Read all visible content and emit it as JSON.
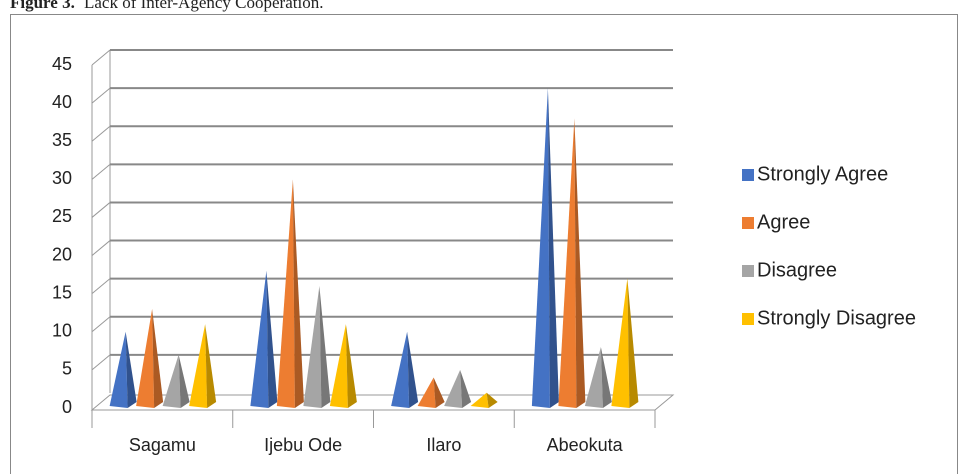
{
  "figure_label": "Figure 3.",
  "caption": "Lack of Inter-Agency Cooperation.",
  "chart_data": {
    "type": "pyramid3d",
    "categories": [
      "Sagamu",
      "Ijebu Ode",
      "Ilaro",
      "Abeokuta"
    ],
    "series": [
      {
        "name": "Strongly Agree",
        "color": "#4472c4",
        "values": [
          10,
          18,
          10,
          42
        ]
      },
      {
        "name": "Agree",
        "color": "#ed7d31",
        "values": [
          13,
          30,
          4,
          38
        ]
      },
      {
        "name": "Disagree",
        "color": "#a5a5a5",
        "values": [
          7,
          16,
          5,
          8
        ]
      },
      {
        "name": "Strongly Disagree",
        "color": "#ffc000",
        "values": [
          11,
          11,
          2,
          17
        ]
      }
    ],
    "ylim": [
      0,
      45
    ],
    "yticks": [
      0,
      5,
      10,
      15,
      20,
      25,
      30,
      35,
      40,
      45
    ],
    "grid": true,
    "legend": "right"
  }
}
